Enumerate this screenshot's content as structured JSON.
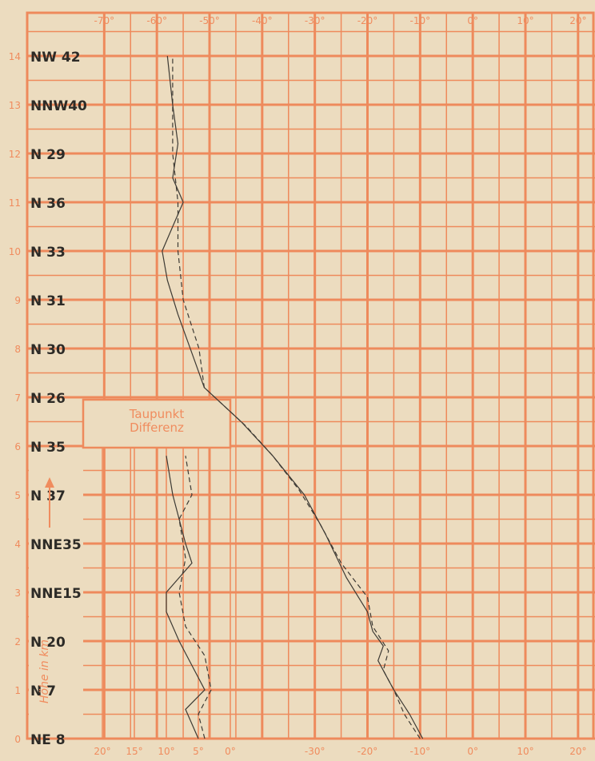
{
  "chart_data": {
    "type": "line",
    "ylabel": "Höhe in km",
    "ylim": [
      0,
      14
    ],
    "yticks": [
      "0",
      "1",
      "2",
      "3",
      "4",
      "5",
      "6",
      "7",
      "8",
      "9",
      "10",
      "11",
      "12",
      "13",
      "14"
    ],
    "temperature_axis": {
      "tick_labels": [
        "-70°",
        "-60°",
        "-50°",
        "-40°",
        "-30°",
        "-20°",
        "-10°",
        "0°",
        "10°",
        "20°"
      ],
      "bottom_tick_labels": [
        "-30°",
        "-20°",
        "-10°",
        "0°",
        "10°",
        "20°"
      ],
      "xlim": [
        -74,
        22
      ]
    },
    "dewpoint_axis": {
      "title": "Taupunkt Differenz",
      "tick_labels": [
        "20°",
        "15°",
        "10°",
        "5°",
        "0°"
      ],
      "xlim": [
        23,
        0
      ]
    },
    "winds": [
      {
        "height": 0,
        "label": "NE 8"
      },
      {
        "height": 1,
        "label": "N 7"
      },
      {
        "height": 2,
        "label": "N 20"
      },
      {
        "height": 3,
        "label": "NNE15"
      },
      {
        "height": 4,
        "label": "NNE35"
      },
      {
        "height": 5,
        "label": "N 37"
      },
      {
        "height": 6,
        "label": "N 35"
      },
      {
        "height": 7,
        "label": "N 26"
      },
      {
        "height": 8,
        "label": "N 30"
      },
      {
        "height": 9,
        "label": "N 31"
      },
      {
        "height": 10,
        "label": "N 33"
      },
      {
        "height": 11,
        "label": "N 36"
      },
      {
        "height": 12,
        "label": "N 29"
      },
      {
        "height": 13,
        "label": "NNW40"
      },
      {
        "height": 14,
        "label": "NW 42"
      }
    ],
    "temperature_series": [
      {
        "points": [
          [
            -9.5,
            0
          ],
          [
            -12,
            0.5
          ],
          [
            -15,
            1
          ],
          [
            -16.5,
            1.3
          ],
          [
            -18,
            1.6
          ],
          [
            -17,
            1.9
          ],
          [
            -19,
            2.2
          ],
          [
            -20,
            2.6
          ],
          [
            -24,
            3.3
          ],
          [
            -28,
            4.2
          ],
          [
            -32,
            5.0
          ],
          [
            -38,
            5.8
          ],
          [
            -44,
            6.5
          ],
          [
            -51,
            7.2
          ],
          [
            -53,
            7.8
          ],
          [
            -56,
            8.7
          ],
          [
            -58,
            9.4
          ],
          [
            -59,
            10
          ],
          [
            -57,
            10.5
          ],
          [
            -55,
            11
          ],
          [
            -57,
            11.5
          ],
          [
            -56,
            12.2
          ],
          [
            -57,
            13
          ],
          [
            -58,
            14
          ]
        ]
      },
      {
        "points": [
          [
            -10,
            0
          ],
          [
            -13,
            0.5
          ],
          [
            -15,
            1
          ],
          [
            -17,
            1.4
          ],
          [
            -16,
            1.8
          ],
          [
            -19,
            2.3
          ],
          [
            -20,
            2.9
          ],
          [
            -25,
            3.6
          ],
          [
            -29,
            4.4
          ],
          [
            -33,
            5.1
          ],
          [
            -38,
            5.8
          ],
          [
            -43,
            6.4
          ],
          [
            -51,
            7.2
          ],
          [
            -52,
            8
          ],
          [
            -55,
            9
          ],
          [
            -56,
            10
          ],
          [
            -56,
            11
          ],
          [
            -57,
            12
          ],
          [
            -57,
            13
          ],
          [
            -57,
            14
          ]
        ]
      }
    ],
    "dewpoint_series": [
      {
        "points": [
          [
            5,
            0
          ],
          [
            7,
            0.6
          ],
          [
            4,
            1
          ],
          [
            6,
            1.5
          ],
          [
            8,
            2
          ],
          [
            10,
            2.6
          ],
          [
            10,
            3
          ],
          [
            6,
            3.6
          ],
          [
            7,
            4
          ],
          [
            9,
            5
          ],
          [
            10,
            5.8
          ]
        ]
      },
      {
        "points": [
          [
            4,
            0
          ],
          [
            5,
            0.5
          ],
          [
            3,
            1
          ],
          [
            4,
            1.7
          ],
          [
            7,
            2.3
          ],
          [
            8,
            3
          ],
          [
            7,
            3.7
          ],
          [
            8,
            4.5
          ],
          [
            6,
            5
          ],
          [
            7,
            5.8
          ]
        ]
      }
    ]
  }
}
